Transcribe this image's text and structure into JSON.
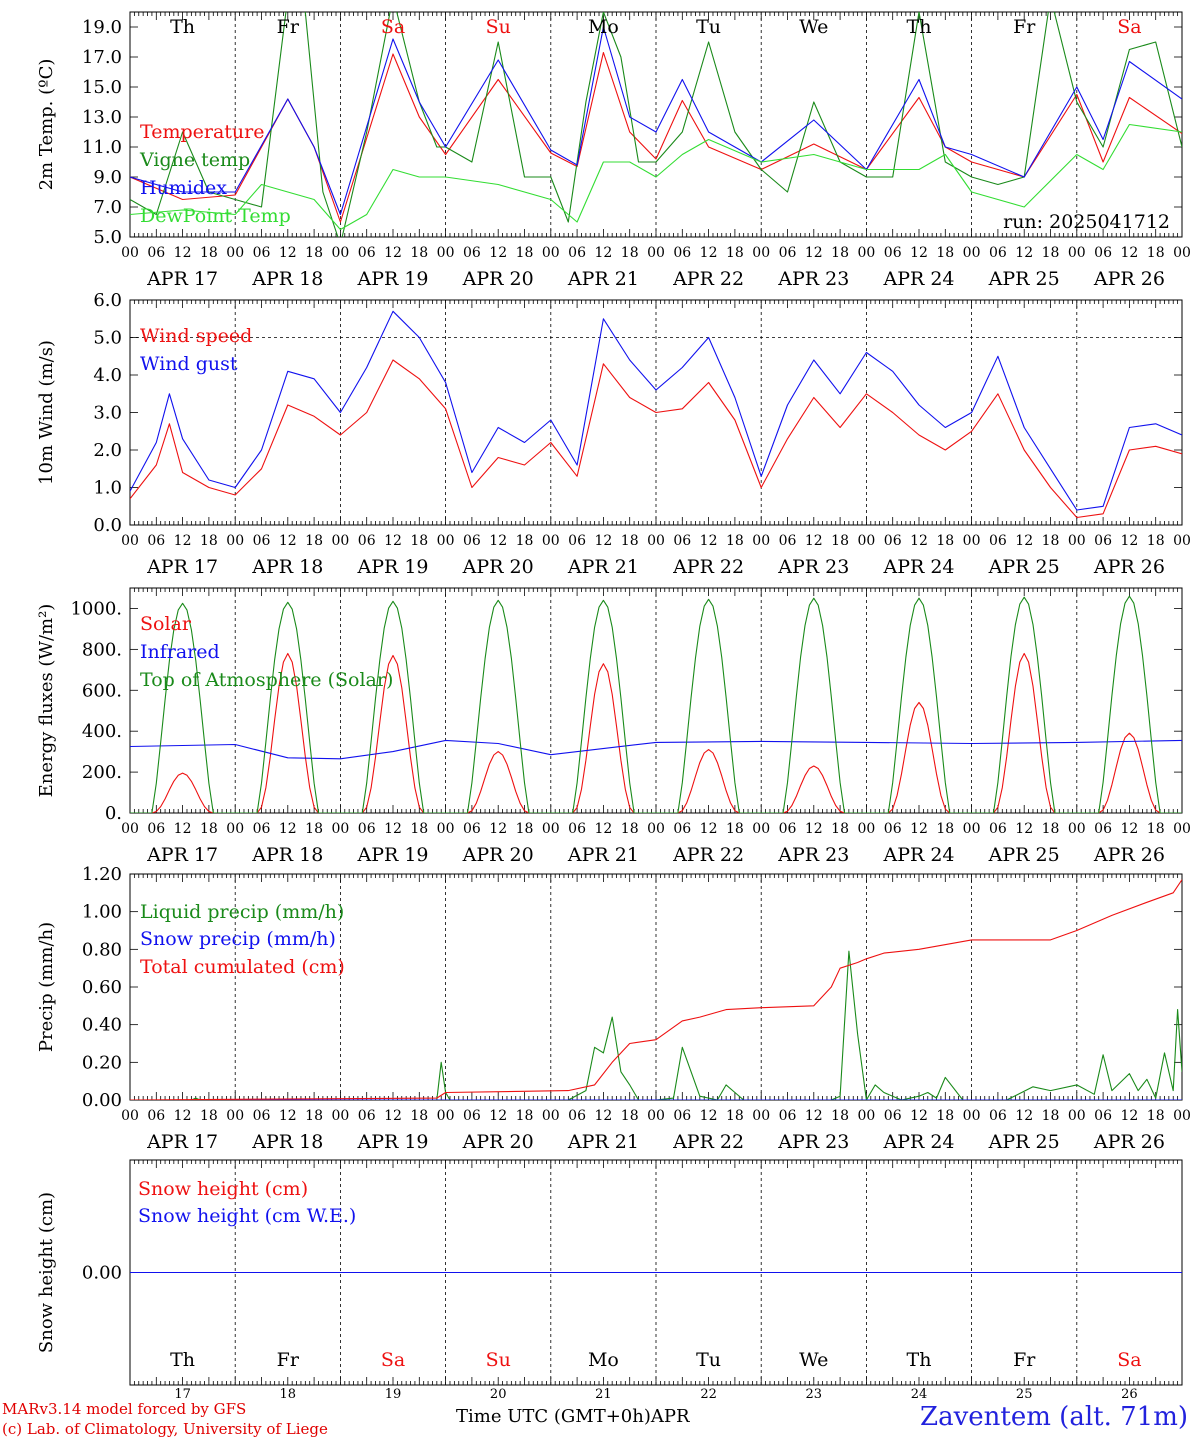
{
  "chart_data": {
    "type": "line",
    "run_label": "run: 2025041712",
    "hour_ticks": [
      "00",
      "06",
      "12",
      "18"
    ],
    "date_labels": [
      "APR 17",
      "APR 18",
      "APR 19",
      "APR 20",
      "APR 21",
      "APR 22",
      "APR 23",
      "APR 24",
      "APR 25",
      "APR 26"
    ],
    "weekdays": [
      "Th",
      "Fr",
      "Sa",
      "Su",
      "Mo",
      "Tu",
      "We",
      "Th",
      "Fr",
      "Sa"
    ],
    "day_numbers": [
      "17",
      "18",
      "19",
      "20",
      "21",
      "22",
      "23",
      "24",
      "25",
      "26"
    ],
    "x_axis_title": "Time UTC (GMT+0h)",
    "x_axis_month": "APR",
    "panels": [
      {
        "id": "temperature",
        "ylabel": "2m Temp. (ºC)",
        "ylim": [
          5.0,
          20.0
        ],
        "yticks": [
          "5.0",
          "7.0",
          "9.0",
          "11.0",
          "13.0",
          "15.0",
          "17.0",
          "19.0"
        ],
        "ytick_values": [
          5,
          7,
          9,
          11,
          13,
          15,
          17,
          19
        ],
        "series": [
          {
            "name": "Temperature",
            "color": "#ee1111",
            "x_hours": [
              0,
              12,
              24,
              36,
              42,
              48,
              60,
              66,
              72,
              84,
              96,
              102,
              108,
              114,
              120,
              126,
              132,
              144,
              156,
              168,
              180,
              186,
              192,
              204,
              216,
              222,
              228,
              240
            ],
            "values": [
              9.0,
              7.5,
              7.8,
              14.2,
              11.0,
              6.0,
              17.2,
              13.0,
              10.5,
              15.5,
              10.6,
              9.7,
              17.3,
              12.0,
              10.2,
              14.1,
              11.0,
              9.5,
              11.2,
              9.5,
              14.3,
              11.0,
              10.0,
              9.0,
              14.5,
              10.0,
              14.3,
              11.9
            ]
          },
          {
            "name": "Vigne temp",
            "color": "#1a8a1a",
            "x_hours": [
              0,
              6,
              12,
              18,
              24,
              30,
              36,
              40,
              44,
              48,
              54,
              60,
              66,
              70,
              72,
              78,
              84,
              90,
              96,
              100,
              104,
              108,
              112,
              116,
              120,
              126,
              132,
              138,
              144,
              150,
              156,
              162,
              168,
              174,
              180,
              186,
              192,
              198,
              204,
              210,
              216,
              222,
              228,
              234,
              240
            ],
            "values": [
              7.5,
              6.5,
              12.0,
              8.0,
              7.5,
              7.0,
              21.0,
              20.0,
              8.0,
              4.5,
              12.0,
              21.0,
              14.0,
              11.0,
              11.0,
              10.0,
              18.0,
              9.0,
              9.0,
              6.0,
              14.0,
              20.0,
              17.0,
              10.0,
              10.0,
              12.0,
              18.0,
              12.0,
              9.5,
              8.0,
              14.0,
              10.0,
              9.0,
              9.0,
              20.0,
              10.0,
              9.0,
              8.5,
              9.0,
              21.0,
              14.0,
              11.0,
              17.5,
              18.0,
              11.0
            ]
          },
          {
            "name": "Humidex",
            "color": "#1111ee",
            "x_hours": [
              0,
              12,
              24,
              36,
              42,
              48,
              60,
              66,
              72,
              84,
              96,
              102,
              108,
              114,
              120,
              126,
              132,
              144,
              156,
              168,
              180,
              186,
              192,
              204,
              216,
              222,
              228,
              240
            ],
            "values": [
              9.0,
              8.0,
              8.0,
              14.2,
              11.0,
              6.5,
              18.2,
              14.0,
              11.0,
              16.8,
              10.8,
              9.8,
              19.0,
              13.0,
              12.0,
              15.5,
              12.0,
              10.0,
              12.8,
              9.5,
              15.5,
              11.0,
              10.5,
              9.0,
              15.0,
              11.5,
              16.7,
              14.2
            ]
          },
          {
            "name": "DewPoint Temp",
            "color": "#33dd33",
            "x_hours": [
              0,
              12,
              24,
              30,
              36,
              42,
              48,
              54,
              60,
              66,
              72,
              84,
              96,
              102,
              108,
              114,
              120,
              126,
              132,
              144,
              156,
              168,
              180,
              186,
              192,
              204,
              216,
              222,
              228,
              240
            ],
            "values": [
              6.5,
              6.8,
              6.5,
              8.5,
              8.0,
              7.5,
              5.5,
              6.5,
              9.5,
              9.0,
              9.0,
              8.5,
              7.5,
              6.0,
              10.0,
              10.0,
              9.0,
              10.5,
              11.5,
              10.0,
              10.5,
              9.5,
              9.5,
              10.5,
              8.0,
              7.0,
              10.5,
              9.5,
              12.5,
              12.0
            ]
          }
        ]
      },
      {
        "id": "wind",
        "ylabel": "10m Wind (m/s)",
        "ylim": [
          0.0,
          6.0
        ],
        "yticks": [
          "0.0",
          "1.0",
          "2.0",
          "3.0",
          "4.0",
          "5.0",
          "6.0"
        ],
        "ytick_values": [
          0,
          1,
          2,
          3,
          4,
          5,
          6
        ],
        "ref_line": 5.0,
        "series": [
          {
            "name": "Wind speed",
            "color": "#ee1111",
            "x_hours": [
              0,
              6,
              9,
              12,
              18,
              24,
              30,
              36,
              42,
              48,
              54,
              60,
              66,
              72,
              78,
              84,
              90,
              96,
              102,
              108,
              114,
              120,
              126,
              132,
              138,
              144,
              150,
              156,
              162,
              168,
              174,
              180,
              186,
              192,
              198,
              204,
              210,
              216,
              222,
              228,
              234,
              240
            ],
            "values": [
              0.7,
              1.6,
              2.7,
              1.4,
              1.0,
              0.8,
              1.5,
              3.2,
              2.9,
              2.4,
              3.0,
              4.4,
              3.9,
              3.1,
              1.0,
              1.8,
              1.6,
              2.2,
              1.3,
              4.3,
              3.4,
              3.0,
              3.1,
              3.8,
              2.8,
              1.0,
              2.3,
              3.4,
              2.6,
              3.5,
              3.0,
              2.4,
              2.0,
              2.5,
              3.5,
              2.0,
              1.0,
              0.2,
              0.3,
              2.0,
              2.1,
              1.9
            ]
          },
          {
            "name": "Wind gust",
            "color": "#1111ee",
            "x_hours": [
              0,
              6,
              9,
              12,
              18,
              24,
              30,
              36,
              42,
              48,
              54,
              60,
              66,
              72,
              78,
              84,
              90,
              96,
              102,
              108,
              114,
              120,
              126,
              132,
              138,
              144,
              150,
              156,
              162,
              168,
              174,
              180,
              186,
              192,
              198,
              204,
              210,
              216,
              222,
              228,
              234,
              240
            ],
            "values": [
              0.9,
              2.2,
              3.5,
              2.3,
              1.2,
              1.0,
              2.0,
              4.1,
              3.9,
              3.0,
              4.2,
              5.7,
              5.0,
              3.8,
              1.4,
              2.6,
              2.2,
              2.8,
              1.6,
              5.5,
              4.4,
              3.6,
              4.2,
              5.0,
              3.4,
              1.3,
              3.2,
              4.4,
              3.5,
              4.6,
              4.1,
              3.2,
              2.6,
              3.0,
              4.5,
              2.6,
              1.5,
              0.4,
              0.5,
              2.6,
              2.7,
              2.4
            ]
          }
        ]
      },
      {
        "id": "energy",
        "ylabel": "Energy fluxes (W/m²)",
        "ylim": [
          0,
          1100
        ],
        "yticks": [
          "0.",
          "200.",
          "400.",
          "600.",
          "800.",
          "1000."
        ],
        "ytick_values": [
          0,
          200,
          400,
          600,
          800,
          1000
        ],
        "series": [
          {
            "name": "Solar",
            "color": "#ee1111",
            "daily_peak": [
              195,
              780,
              770,
              300,
              730,
              310,
              230,
              540,
              780,
              390
            ]
          },
          {
            "name": "Infrared",
            "color": "#1111ee",
            "x_hours": [
              0,
              24,
              36,
              48,
              60,
              72,
              84,
              96,
              120,
              144,
              168,
              192,
              216,
              240
            ],
            "values": [
              325,
              335,
              270,
              265,
              300,
              355,
              340,
              285,
              345,
              350,
              345,
              340,
              345,
              355
            ]
          },
          {
            "name": "Top of Atmosphere (Solar)",
            "color": "#1a8a1a",
            "daily_peak": [
              1025,
              1030,
              1035,
              1040,
              1040,
              1045,
              1050,
              1050,
              1055,
              1060
            ]
          }
        ]
      },
      {
        "id": "precip",
        "ylabel": "Precip (mm/h)",
        "ylim": [
          0.0,
          1.2
        ],
        "yticks": [
          "0.00",
          "0.20",
          "0.40",
          "0.60",
          "0.80",
          "1.00",
          "1.20"
        ],
        "ytick_values": [
          0,
          0.2,
          0.4,
          0.6,
          0.8,
          1.0,
          1.2
        ],
        "series": [
          {
            "name": "Liquid precip (mm/h)",
            "color": "#1a8a1a",
            "x_hours": [
              0,
              14,
              15,
              16,
              70,
              71,
              72,
              73,
              74,
              100,
              104,
              106,
              108,
              110,
              112,
              114,
              116,
              120,
              124,
              126,
              128,
              130,
              134,
              136,
              138,
              140,
              144,
              160,
              162,
              164,
              166,
              168,
              170,
              172,
              176,
              180,
              182,
              184,
              186,
              190,
              200,
              206,
              210,
              216,
              220,
              222,
              224,
              228,
              230,
              232,
              234,
              236,
              238,
              239,
              240
            ],
            "values": [
              0,
              0,
              0.01,
              0,
              0,
              0.2,
              0.04,
              0,
              0,
              0,
              0.05,
              0.28,
              0.25,
              0.44,
              0.15,
              0.08,
              0,
              0,
              0.01,
              0.28,
              0.15,
              0.02,
              0,
              0.08,
              0.04,
              0,
              0,
              0,
              0.02,
              0.79,
              0.35,
              0,
              0.08,
              0.04,
              0,
              0.02,
              0.04,
              0.01,
              0.12,
              0,
              0,
              0.07,
              0.05,
              0.08,
              0.03,
              0.24,
              0.05,
              0.14,
              0.05,
              0.11,
              0.01,
              0.25,
              0.05,
              0.48,
              0.15
            ]
          },
          {
            "name": "Snow precip (mm/h)",
            "color": "#1111ee",
            "x_hours": [
              0,
              240
            ],
            "values": [
              0,
              0
            ]
          },
          {
            "name": "Total cumulated (cm)",
            "color": "#ee1111",
            "x_hours": [
              0,
              70,
              72,
              100,
              106,
              110,
              114,
              120,
              126,
              130,
              136,
              144,
              156,
              160,
              162,
              166,
              168,
              172,
              180,
              192,
              200,
              210,
              216,
              224,
              232,
              238,
              240
            ],
            "values": [
              0,
              0.01,
              0.04,
              0.05,
              0.08,
              0.2,
              0.3,
              0.32,
              0.42,
              0.44,
              0.48,
              0.49,
              0.5,
              0.6,
              0.7,
              0.73,
              0.75,
              0.78,
              0.8,
              0.85,
              0.85,
              0.85,
              0.9,
              0.98,
              1.05,
              1.1,
              1.17
            ]
          }
        ]
      },
      {
        "id": "snow",
        "ylabel": "Snow height (cm)",
        "ylim": [
          -1,
          1
        ],
        "yticks": [
          "0.00"
        ],
        "ytick_values": [
          0
        ],
        "series": [
          {
            "name": "Snow height (cm)",
            "color": "#ee1111",
            "x_hours": [
              0,
              240
            ],
            "values": [
              0,
              0
            ]
          },
          {
            "name": "Snow height (cm W.E.)",
            "color": "#1111ee",
            "x_hours": [
              0,
              240
            ],
            "values": [
              0,
              0
            ]
          }
        ]
      }
    ]
  },
  "footer": {
    "model_line": "MARv3.14 model forced by GFS",
    "credit_line": "(c) Lab. of Climatology, University of Liege",
    "station": "Zaventem (alt. 71m)"
  },
  "colors": {
    "weekday": "#000000",
    "weekend": "#ee1111"
  }
}
